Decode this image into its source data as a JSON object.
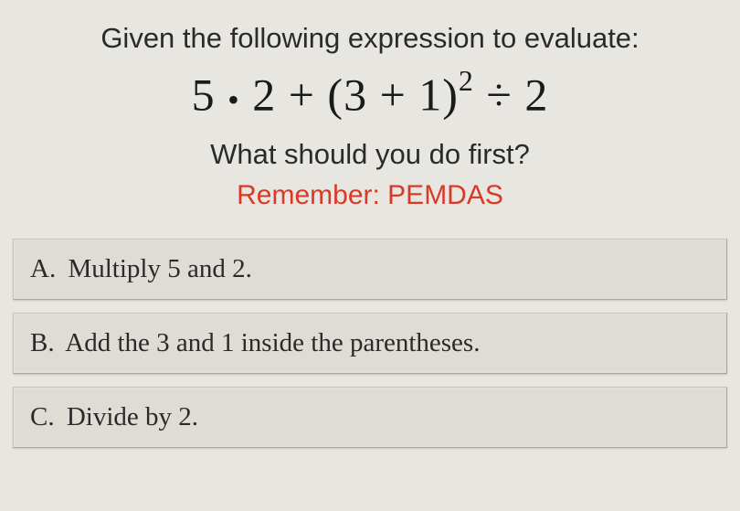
{
  "colors": {
    "page_bg": "#e8e6e0",
    "text": "#2a2a2a",
    "hint": "#d83a2a",
    "answer_bg": "#dedcd4",
    "answer_border": "#a8a69e"
  },
  "fonts": {
    "prompt_family": "Arial, Helvetica, sans-serif",
    "prompt_size_pt": 23,
    "expression_family": "Times New Roman, Times, serif",
    "expression_size_pt": 38,
    "answer_family": "Georgia, Times New Roman, serif",
    "answer_size_pt": 22
  },
  "question": {
    "prompt": "Given the following expression to evaluate:",
    "expression_plain": "5 · 2 + (3 + 1)² ÷ 2",
    "expression_parts": {
      "p1": "5 ",
      "dot": "•",
      "p2": " 2 + (3 + 1)",
      "exp": "2",
      "p3": " ÷ 2"
    },
    "ask": "What should you do first?",
    "hint": "Remember:  PEMDAS"
  },
  "answers": [
    {
      "label": "A.",
      "text": "Multiply 5 and 2."
    },
    {
      "label": "B.",
      "text": "Add the 3 and 1 inside the parentheses."
    },
    {
      "label": "C.",
      "text": "Divide by 2."
    }
  ]
}
